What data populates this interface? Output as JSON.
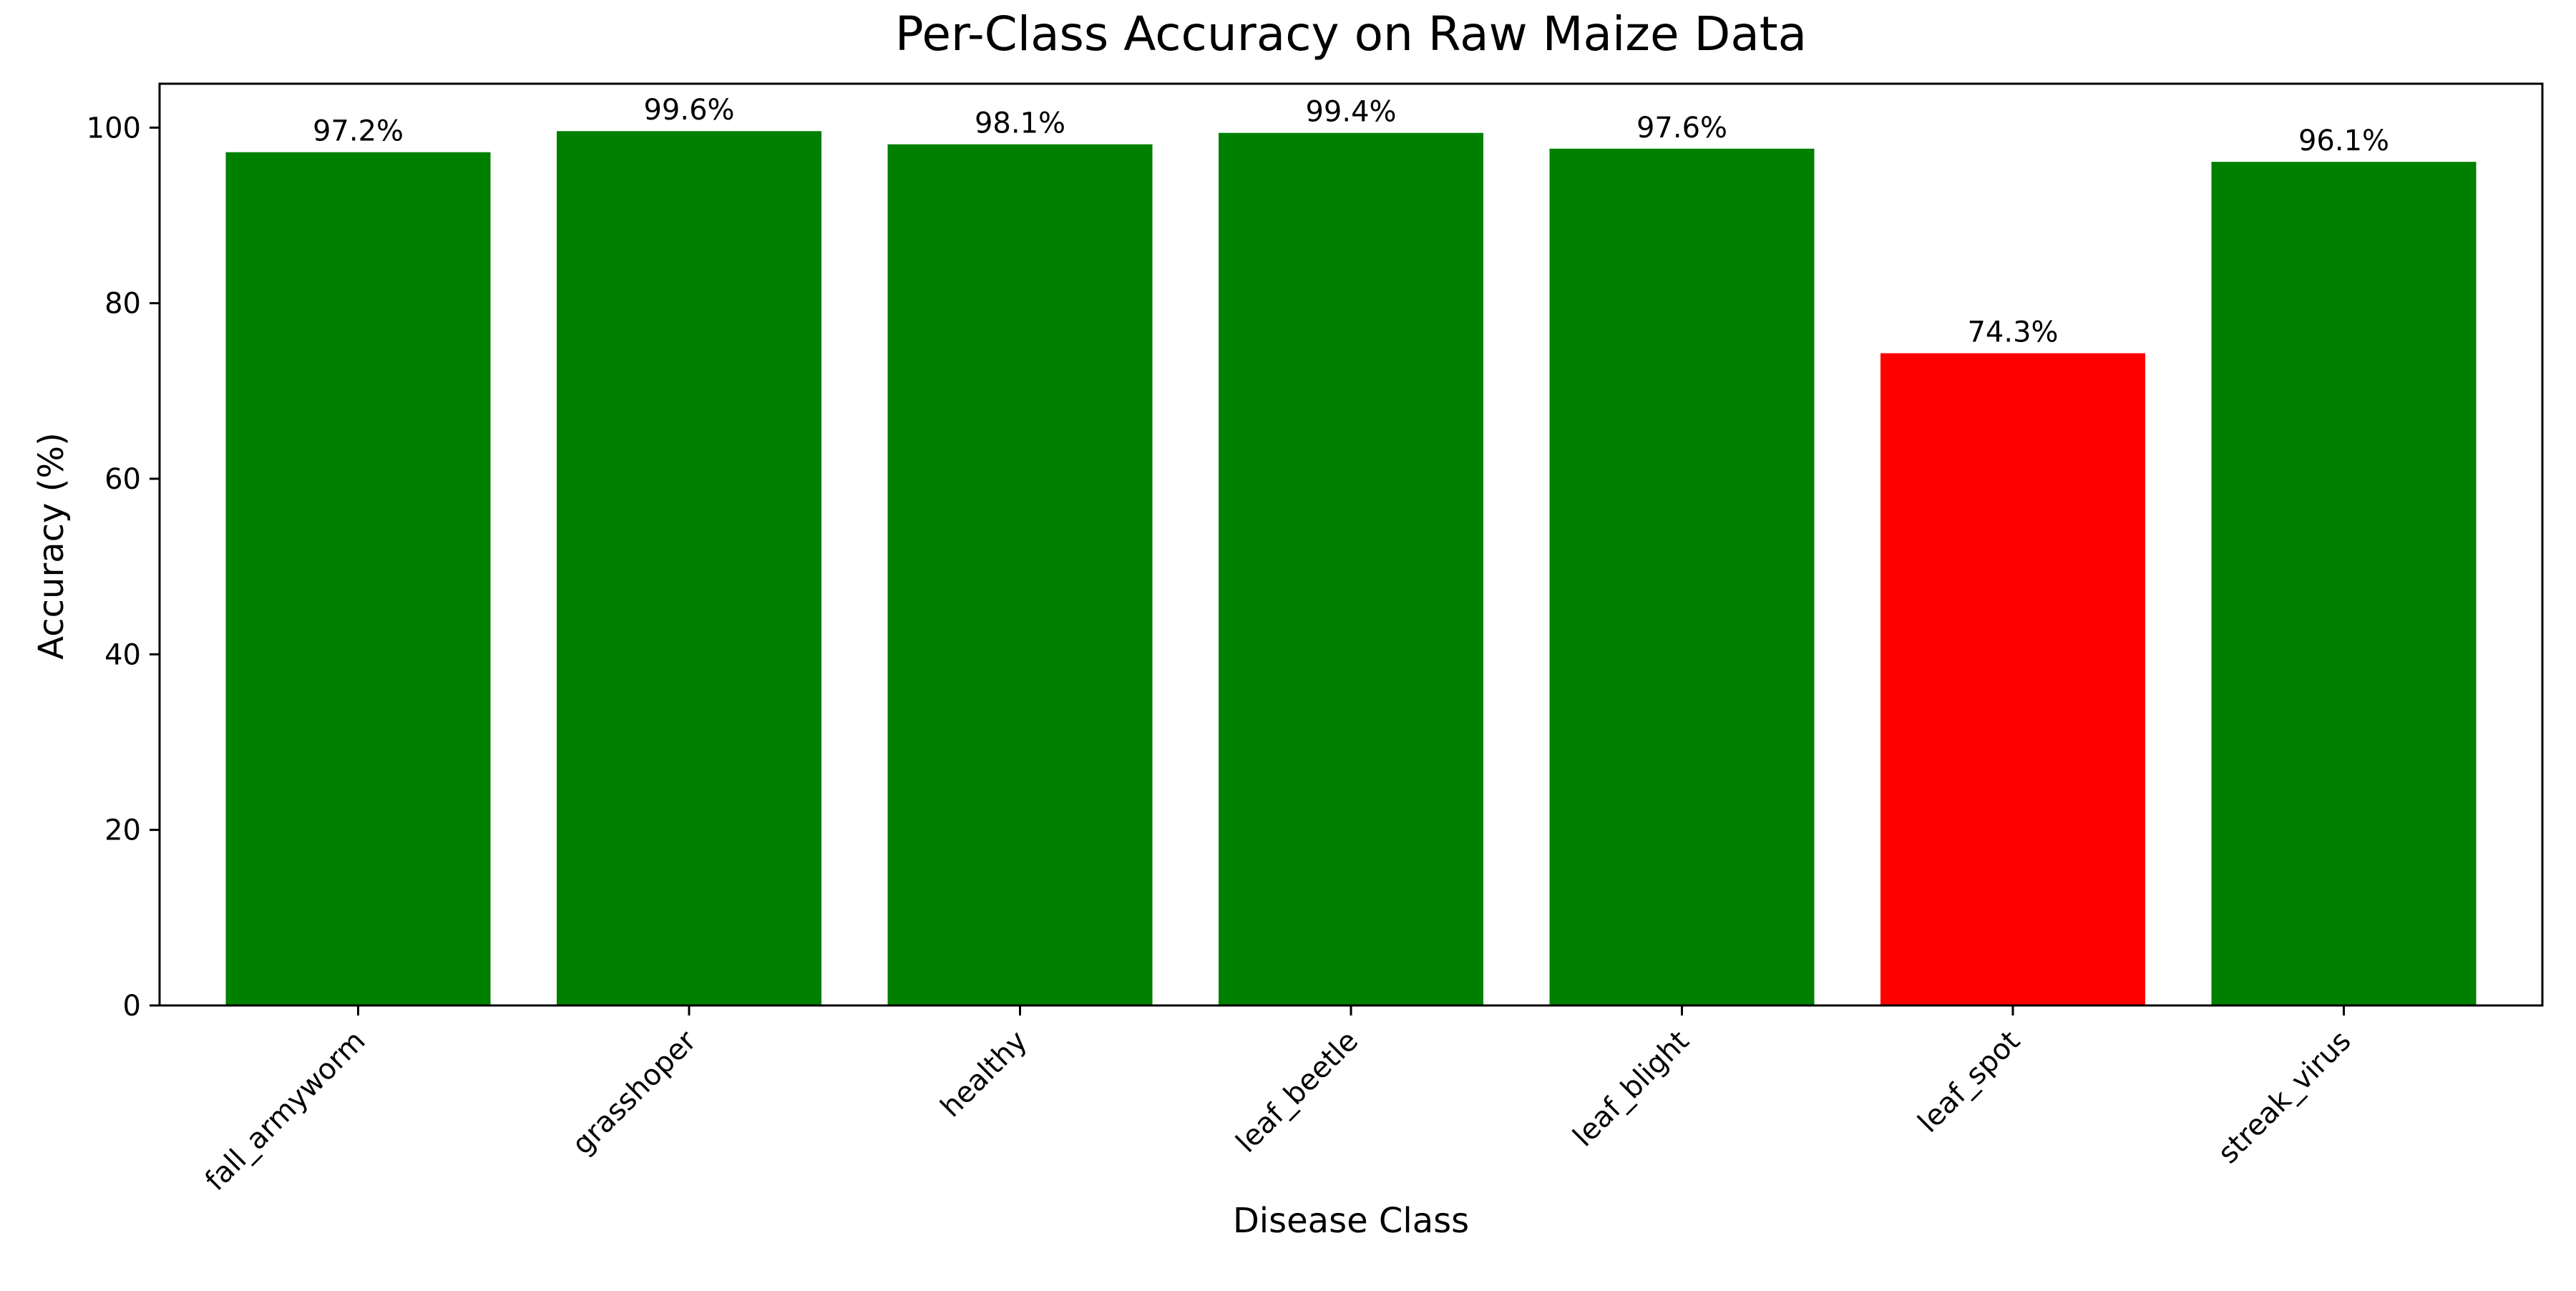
{
  "chart_data": {
    "type": "bar",
    "title": "Per-Class Accuracy on Raw Maize Data",
    "xlabel": "Disease Class",
    "ylabel": "Accuracy (%)",
    "categories": [
      "fall_armyworm",
      "grasshoper",
      "healthy",
      "leaf_beetle",
      "leaf_blight",
      "leaf_spot",
      "streak_virus"
    ],
    "values": [
      97.2,
      99.6,
      98.1,
      99.4,
      97.6,
      74.3,
      96.1
    ],
    "data_labels": [
      "97.2%",
      "99.6%",
      "98.1%",
      "99.4%",
      "97.6%",
      "74.3%",
      "96.1%"
    ],
    "bar_colors": [
      "#008000",
      "#008000",
      "#008000",
      "#008000",
      "#008000",
      "#ff0000",
      "#008000"
    ],
    "ylim": [
      0,
      105
    ],
    "yticks": [
      0,
      20,
      40,
      60,
      80,
      100
    ],
    "grid": false,
    "legend": "none"
  }
}
